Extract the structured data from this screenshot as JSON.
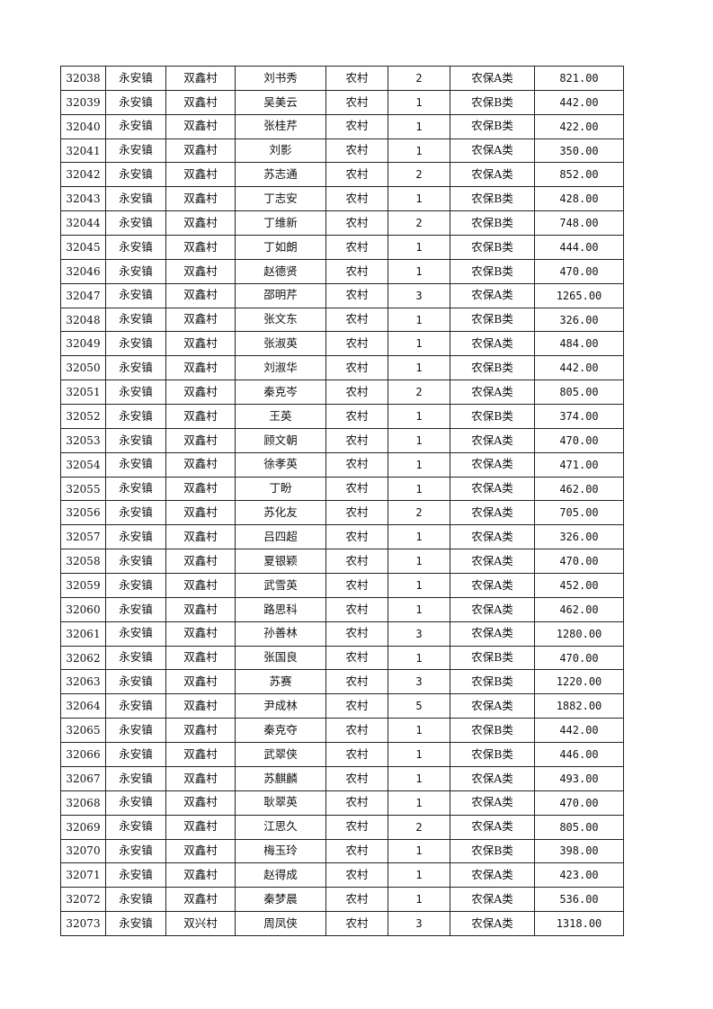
{
  "table": {
    "rows": [
      [
        "32038",
        "永安镇",
        "双鑫村",
        "刘书秀",
        "农村",
        "2",
        "农保A类",
        "821.00"
      ],
      [
        "32039",
        "永安镇",
        "双鑫村",
        "吴美云",
        "农村",
        "1",
        "农保B类",
        "442.00"
      ],
      [
        "32040",
        "永安镇",
        "双鑫村",
        "张桂芹",
        "农村",
        "1",
        "农保B类",
        "422.00"
      ],
      [
        "32041",
        "永安镇",
        "双鑫村",
        "刘影",
        "农村",
        "1",
        "农保A类",
        "350.00"
      ],
      [
        "32042",
        "永安镇",
        "双鑫村",
        "苏志通",
        "农村",
        "2",
        "农保A类",
        "852.00"
      ],
      [
        "32043",
        "永安镇",
        "双鑫村",
        "丁志安",
        "农村",
        "1",
        "农保B类",
        "428.00"
      ],
      [
        "32044",
        "永安镇",
        "双鑫村",
        "丁维新",
        "农村",
        "2",
        "农保B类",
        "748.00"
      ],
      [
        "32045",
        "永安镇",
        "双鑫村",
        "丁如朗",
        "农村",
        "1",
        "农保B类",
        "444.00"
      ],
      [
        "32046",
        "永安镇",
        "双鑫村",
        "赵德贤",
        "农村",
        "1",
        "农保B类",
        "470.00"
      ],
      [
        "32047",
        "永安镇",
        "双鑫村",
        "邵明芹",
        "农村",
        "3",
        "农保A类",
        "1265.00"
      ],
      [
        "32048",
        "永安镇",
        "双鑫村",
        "张文东",
        "农村",
        "1",
        "农保B类",
        "326.00"
      ],
      [
        "32049",
        "永安镇",
        "双鑫村",
        "张淑英",
        "农村",
        "1",
        "农保A类",
        "484.00"
      ],
      [
        "32050",
        "永安镇",
        "双鑫村",
        "刘淑华",
        "农村",
        "1",
        "农保B类",
        "442.00"
      ],
      [
        "32051",
        "永安镇",
        "双鑫村",
        "秦克岑",
        "农村",
        "2",
        "农保A类",
        "805.00"
      ],
      [
        "32052",
        "永安镇",
        "双鑫村",
        "王英",
        "农村",
        "1",
        "农保B类",
        "374.00"
      ],
      [
        "32053",
        "永安镇",
        "双鑫村",
        "顾文朝",
        "农村",
        "1",
        "农保A类",
        "470.00"
      ],
      [
        "32054",
        "永安镇",
        "双鑫村",
        "徐孝英",
        "农村",
        "1",
        "农保A类",
        "471.00"
      ],
      [
        "32055",
        "永安镇",
        "双鑫村",
        "丁盼",
        "农村",
        "1",
        "农保A类",
        "462.00"
      ],
      [
        "32056",
        "永安镇",
        "双鑫村",
        "苏化友",
        "农村",
        "2",
        "农保A类",
        "705.00"
      ],
      [
        "32057",
        "永安镇",
        "双鑫村",
        "吕四超",
        "农村",
        "1",
        "农保A类",
        "326.00"
      ],
      [
        "32058",
        "永安镇",
        "双鑫村",
        "夏银颖",
        "农村",
        "1",
        "农保A类",
        "470.00"
      ],
      [
        "32059",
        "永安镇",
        "双鑫村",
        "武雪英",
        "农村",
        "1",
        "农保A类",
        "452.00"
      ],
      [
        "32060",
        "永安镇",
        "双鑫村",
        "路思科",
        "农村",
        "1",
        "农保A类",
        "462.00"
      ],
      [
        "32061",
        "永安镇",
        "双鑫村",
        "孙善林",
        "农村",
        "3",
        "农保A类",
        "1280.00"
      ],
      [
        "32062",
        "永安镇",
        "双鑫村",
        "张国良",
        "农村",
        "1",
        "农保B类",
        "470.00"
      ],
      [
        "32063",
        "永安镇",
        "双鑫村",
        "苏赛",
        "农村",
        "3",
        "农保B类",
        "1220.00"
      ],
      [
        "32064",
        "永安镇",
        "双鑫村",
        "尹成林",
        "农村",
        "5",
        "农保A类",
        "1882.00"
      ],
      [
        "32065",
        "永安镇",
        "双鑫村",
        "秦克夺",
        "农村",
        "1",
        "农保B类",
        "442.00"
      ],
      [
        "32066",
        "永安镇",
        "双鑫村",
        "武翠侠",
        "农村",
        "1",
        "农保B类",
        "446.00"
      ],
      [
        "32067",
        "永安镇",
        "双鑫村",
        "苏麒麟",
        "农村",
        "1",
        "农保A类",
        "493.00"
      ],
      [
        "32068",
        "永安镇",
        "双鑫村",
        "耿翠英",
        "农村",
        "1",
        "农保A类",
        "470.00"
      ],
      [
        "32069",
        "永安镇",
        "双鑫村",
        "江思久",
        "农村",
        "2",
        "农保A类",
        "805.00"
      ],
      [
        "32070",
        "永安镇",
        "双鑫村",
        "梅玉玲",
        "农村",
        "1",
        "农保B类",
        "398.00"
      ],
      [
        "32071",
        "永安镇",
        "双鑫村",
        "赵得成",
        "农村",
        "1",
        "农保A类",
        "423.00"
      ],
      [
        "32072",
        "永安镇",
        "双鑫村",
        "秦梦晨",
        "农村",
        "1",
        "农保A类",
        "536.00"
      ],
      [
        "32073",
        "永安镇",
        "双兴村",
        "周凤侠",
        "农村",
        "3",
        "农保A类",
        "1318.00"
      ]
    ]
  }
}
